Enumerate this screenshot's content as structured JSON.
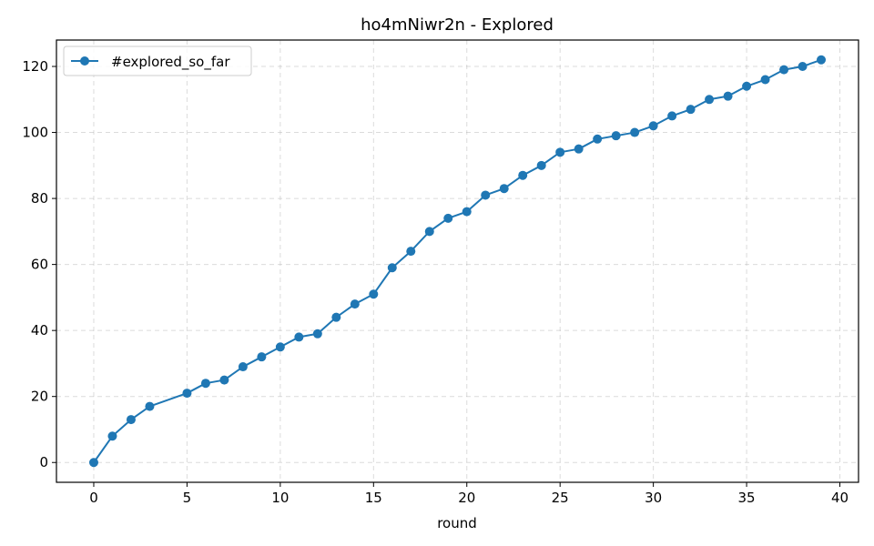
{
  "chart_data": {
    "type": "line",
    "title": "ho4mNiwr2n - Explored",
    "xlabel": "round",
    "ylabel": "",
    "xlim": [
      -2,
      41
    ],
    "ylim": [
      -6,
      128
    ],
    "xticks": [
      0,
      5,
      10,
      15,
      20,
      25,
      30,
      35,
      40
    ],
    "yticks": [
      0,
      20,
      40,
      60,
      80,
      100,
      120
    ],
    "grid": true,
    "legend_position": "top-left",
    "series": [
      {
        "name": "#explored_so_far",
        "color": "#1f77b4",
        "marker": "circle",
        "x": [
          0,
          1,
          2,
          3,
          5,
          6,
          7,
          8,
          9,
          10,
          11,
          12,
          13,
          14,
          15,
          16,
          17,
          18,
          19,
          20,
          21,
          22,
          23,
          24,
          25,
          26,
          27,
          28,
          29,
          30,
          31,
          32,
          33,
          34,
          35,
          36,
          37,
          38,
          39
        ],
        "y": [
          0,
          8,
          13,
          17,
          21,
          24,
          25,
          29,
          32,
          35,
          38,
          39,
          44,
          48,
          51,
          59,
          64,
          70,
          74,
          76,
          81,
          83,
          87,
          90,
          94,
          95,
          98,
          99,
          100,
          102,
          105,
          107,
          110,
          111,
          114,
          116,
          119,
          120,
          122
        ]
      }
    ]
  }
}
